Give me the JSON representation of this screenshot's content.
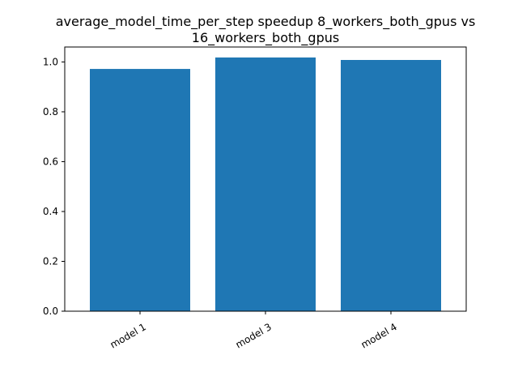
{
  "chart_data": {
    "type": "bar",
    "title_lines": [
      "average_model_time_per_step speedup 8_workers_both_gpus vs",
      "16_workers_both_gpus"
    ],
    "xlabel": "",
    "ylabel": "",
    "categories": [
      "model 1",
      "model 3",
      "model 4"
    ],
    "values": [
      0.972,
      1.018,
      1.008
    ],
    "ylim": [
      0,
      1.06
    ],
    "yticks": [
      0.0,
      0.2,
      0.4,
      0.6,
      0.8,
      1.0
    ],
    "ytick_labels": [
      "0.0",
      "0.2",
      "0.4",
      "0.6",
      "0.8",
      "1.0"
    ],
    "bar_color": "#1f77b4",
    "grid": false,
    "legend": "none"
  }
}
